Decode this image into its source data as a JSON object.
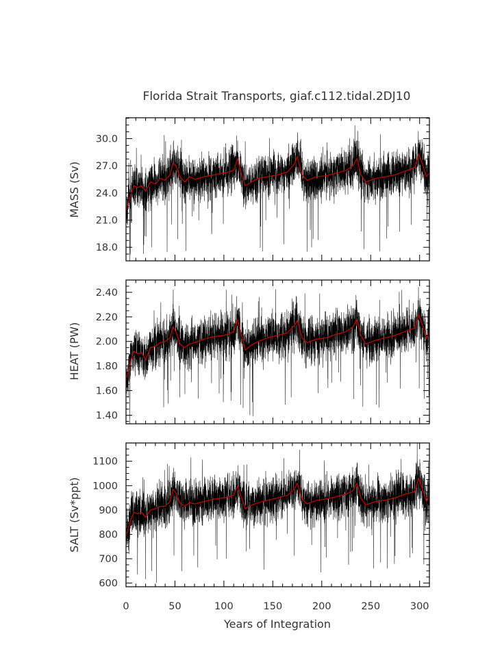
{
  "chart_data": {
    "type": "line",
    "title": "Florida Strait Transports, giaf.c112.tidal.2DJ10",
    "xlabel": "Years of Integration",
    "xlim": [
      0,
      310
    ],
    "xticks": [
      0,
      50,
      100,
      150,
      200,
      250,
      300
    ],
    "grid": false,
    "series_colors": {
      "raw": "#000000",
      "smoothed": "#cc0000"
    },
    "panels": [
      {
        "ylabel": "MASS (Sv)",
        "ylim": [
          16.5,
          32.3
        ],
        "yticks": [
          "18.0",
          "21.0",
          "24.0",
          "27.0",
          "30.0"
        ],
        "smoothed": {
          "x": [
            0,
            2,
            5,
            8,
            12,
            16,
            20,
            25,
            30,
            35,
            40,
            45,
            48,
            51,
            55,
            60,
            65,
            70,
            80,
            90,
            100,
            105,
            110,
            114,
            118,
            122,
            128,
            135,
            145,
            155,
            165,
            172,
            175,
            180,
            185,
            195,
            205,
            215,
            225,
            232,
            236,
            240,
            245,
            255,
            265,
            275,
            285,
            295,
            299,
            303,
            307,
            310
          ],
          "y": [
            22.0,
            22.8,
            23.8,
            24.8,
            24.6,
            24.8,
            24.2,
            25.2,
            25.0,
            25.6,
            25.4,
            26.0,
            27.3,
            27.0,
            25.8,
            25.2,
            25.8,
            25.5,
            25.8,
            26.0,
            26.2,
            26.3,
            26.5,
            27.8,
            26.0,
            24.8,
            25.2,
            25.6,
            25.8,
            26.0,
            26.3,
            27.2,
            28.0,
            26.0,
            25.4,
            25.8,
            25.9,
            26.2,
            26.5,
            27.0,
            27.8,
            26.0,
            25.2,
            25.6,
            25.8,
            26.0,
            26.4,
            26.8,
            28.3,
            27.2,
            25.8,
            26.2
          ]
        }
      },
      {
        "ylabel": "HEAT (PW)",
        "ylim": [
          1.33,
          2.5
        ],
        "yticks": [
          "1.40",
          "1.60",
          "1.80",
          "2.00",
          "2.20",
          "2.40"
        ],
        "smoothed": {
          "x": [
            0,
            2,
            5,
            8,
            12,
            16,
            20,
            25,
            30,
            35,
            40,
            45,
            48,
            51,
            55,
            60,
            65,
            70,
            80,
            90,
            100,
            105,
            110,
            114,
            118,
            122,
            128,
            135,
            145,
            155,
            165,
            172,
            175,
            180,
            185,
            195,
            205,
            215,
            225,
            232,
            236,
            240,
            245,
            255,
            265,
            275,
            285,
            295,
            299,
            303,
            307,
            310
          ],
          "y": [
            1.68,
            1.75,
            1.85,
            1.92,
            1.9,
            1.91,
            1.85,
            1.95,
            1.96,
            1.99,
            2.0,
            2.03,
            2.12,
            2.08,
            1.98,
            1.95,
            1.98,
            1.99,
            2.02,
            2.04,
            2.05,
            2.06,
            2.08,
            2.18,
            2.05,
            1.93,
            1.97,
            2.0,
            2.03,
            2.05,
            2.07,
            2.13,
            2.17,
            2.03,
            1.99,
            2.02,
            2.03,
            2.06,
            2.08,
            2.12,
            2.18,
            2.05,
            1.98,
            2.01,
            2.03,
            2.05,
            2.08,
            2.11,
            2.22,
            2.13,
            2.02,
            2.08
          ]
        }
      },
      {
        "ylabel": "SALT (Sv*ppt)",
        "ylim": [
          585,
          1175
        ],
        "yticks": [
          "600",
          "700",
          "800",
          "900",
          "1000",
          "1100"
        ],
        "smoothed": {
          "x": [
            0,
            2,
            5,
            8,
            12,
            16,
            20,
            25,
            30,
            35,
            40,
            45,
            48,
            51,
            55,
            60,
            65,
            70,
            80,
            90,
            100,
            105,
            110,
            114,
            118,
            122,
            128,
            135,
            145,
            155,
            165,
            172,
            175,
            180,
            185,
            195,
            205,
            215,
            225,
            232,
            236,
            240,
            245,
            255,
            265,
            275,
            285,
            295,
            299,
            303,
            307,
            310
          ],
          "y": [
            790,
            820,
            860,
            890,
            885,
            890,
            870,
            900,
            905,
            915,
            915,
            935,
            985,
            970,
            930,
            915,
            930,
            925,
            935,
            945,
            950,
            955,
            960,
            1000,
            950,
            905,
            920,
            930,
            940,
            950,
            960,
            985,
            1010,
            945,
            925,
            940,
            945,
            955,
            965,
            980,
            1010,
            950,
            920,
            935,
            940,
            950,
            965,
            975,
            1030,
            985,
            935,
            955
          ]
        }
      }
    ]
  }
}
